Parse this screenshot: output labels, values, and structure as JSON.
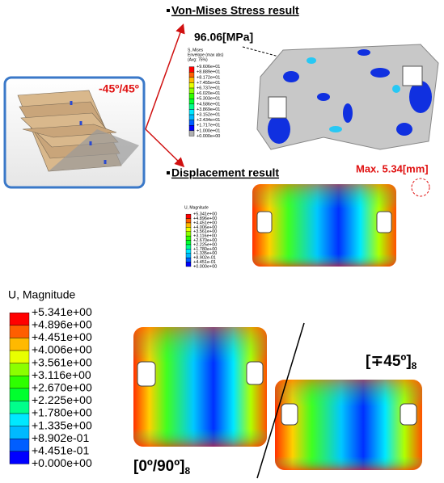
{
  "stress_section": {
    "title": "Von-Mises Stress result",
    "peak_label": "96.06[MPa]",
    "legend": {
      "title": [
        "S, Mises",
        "Envelope (max abs)",
        "(Avg: 75%)"
      ],
      "labels": [
        "+9.606e+01",
        "+8.889e+01",
        "+8.172e+01",
        "+7.455e+01",
        "+6.737e+01",
        "+6.020e+01",
        "+5.303e+01",
        "+4.586e+01",
        "+3.869e+01",
        "+3.152e+01",
        "+2.434e+01",
        "+1.717e+01",
        "+1.000e+01",
        "+0.000e+00"
      ]
    }
  },
  "layup_inset": {
    "label": "-45º/45º"
  },
  "displacement_section": {
    "title": "Displacement result",
    "max_label": "Max. 5.34[mm]",
    "legend": {
      "title": "U, Magnitude",
      "labels": [
        "+5.341e+00",
        "+4.896e+00",
        "+4.451e+00",
        "+4.006e+00",
        "+3.561e+00",
        "+3.116e+00",
        "+2.670e+00",
        "+2.225e+00",
        "+1.780e+00",
        "+1.335e+00",
        "+8.902e-01",
        "+4.451e-01",
        "+0.000e+00"
      ]
    }
  },
  "comparison": {
    "cases": [
      {
        "label": "[0º/90º]",
        "subscript": "8"
      },
      {
        "label": "[∓45º]",
        "subscript": "8"
      }
    ]
  }
}
